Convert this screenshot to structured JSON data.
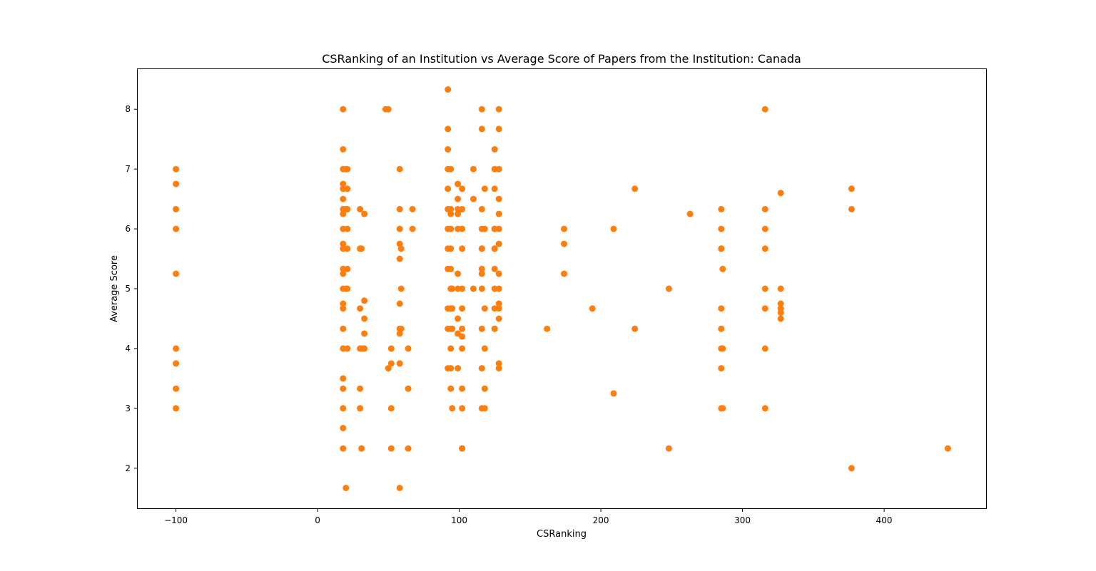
{
  "chart_data": {
    "type": "scatter",
    "title": "CSRanking of an Institution vs Average Score of Papers from the Institution: Canada",
    "xlabel": "CSRanking",
    "ylabel": "Average Score",
    "xlim": [
      -127,
      472
    ],
    "ylim": [
      1.33,
      8.67
    ],
    "xticks": [
      -100,
      0,
      100,
      200,
      300,
      400
    ],
    "xtick_labels": [
      "−100",
      "0",
      "100",
      "200",
      "300",
      "400"
    ],
    "yticks": [
      2,
      3,
      4,
      5,
      6,
      7,
      8
    ],
    "ytick_labels": [
      "2",
      "3",
      "4",
      "5",
      "6",
      "7",
      "8"
    ],
    "grid": false,
    "marker_color": "#ff7f0e",
    "x": [
      -100,
      -100,
      -100,
      -100,
      -100,
      -100,
      -100,
      -100,
      -100,
      18,
      18,
      18,
      18,
      18,
      18,
      18,
      18,
      18,
      18,
      18,
      18,
      18,
      18,
      18,
      18,
      18,
      18,
      18,
      18,
      18,
      18,
      18,
      20,
      20,
      20,
      20,
      21,
      21,
      21,
      21,
      21,
      21,
      21,
      21,
      30,
      30,
      30,
      30,
      30,
      30,
      31,
      31,
      31,
      33,
      33,
      33,
      33,
      33,
      48,
      50,
      50,
      52,
      52,
      52,
      52,
      58,
      58,
      58,
      58,
      58,
      58,
      58,
      58,
      58,
      58,
      59,
      59,
      59,
      64,
      64,
      64,
      67,
      67,
      92,
      92,
      92,
      92,
      92,
      92,
      92,
      92,
      92,
      92,
      92,
      92,
      94,
      94,
      94,
      94,
      94,
      94,
      94,
      94,
      94,
      94,
      94,
      94,
      95,
      95,
      95,
      95,
      99,
      99,
      99,
      99,
      99,
      99,
      99,
      99,
      99,
      99,
      102,
      102,
      102,
      102,
      102,
      102,
      102,
      102,
      102,
      102,
      102,
      102,
      102,
      110,
      110,
      110,
      116,
      116,
      116,
      116,
      116,
      116,
      116,
      116,
      116,
      116,
      116,
      116,
      118,
      118,
      118,
      118,
      118,
      118,
      125,
      125,
      125,
      125,
      125,
      125,
      125,
      125,
      125,
      125,
      125,
      125,
      128,
      128,
      128,
      128,
      128,
      128,
      128,
      128,
      128,
      128,
      128,
      128,
      128,
      128,
      162,
      174,
      174,
      174,
      194,
      209,
      209,
      224,
      224,
      248,
      248,
      263,
      285,
      285,
      285,
      285,
      285,
      285,
      285,
      285,
      285,
      286,
      286,
      286,
      316,
      316,
      316,
      316,
      316,
      316,
      316,
      316,
      327,
      327,
      327,
      327,
      327,
      327,
      377,
      377,
      377,
      445
    ],
    "y": [
      7,
      6.75,
      6.33,
      6,
      5.25,
      4,
      3.75,
      3.33,
      3,
      8,
      7.33,
      7,
      6.75,
      6.67,
      6.5,
      6.33,
      6.25,
      6,
      5.75,
      5.67,
      5.33,
      5.25,
      5,
      4.75,
      4.67,
      4.33,
      4,
      3.5,
      3.33,
      3,
      2.67,
      2.33,
      1.67,
      7,
      6.33,
      5,
      6.67,
      7,
      6.33,
      6,
      5.67,
      5.33,
      5,
      4,
      6.33,
      5.67,
      4.67,
      4,
      3.33,
      3,
      5.67,
      2.33,
      4,
      6.25,
      4.8,
      4.5,
      4.25,
      4,
      8,
      8,
      3.67,
      4,
      3.75,
      3,
      2.33,
      7,
      6.33,
      6,
      5.75,
      5.5,
      4.75,
      4.33,
      4.25,
      3.75,
      1.67,
      5.67,
      5,
      4.33,
      4,
      3.33,
      2.33,
      6.33,
      6,
      8.33,
      7.67,
      7.33,
      7,
      6.67,
      6.33,
      6,
      5.67,
      5.33,
      4.67,
      4.33,
      3.67,
      7,
      6.33,
      6.25,
      6,
      5.67,
      5.33,
      5,
      4.67,
      4.33,
      3.67,
      3.33,
      4,
      3,
      5,
      4.67,
      4.33,
      6.75,
      6.5,
      6.33,
      6.25,
      5.25,
      5,
      4.5,
      4.25,
      3.67,
      6,
      6.67,
      6.33,
      6,
      5.67,
      5,
      4.67,
      4.33,
      4.2,
      4,
      3.33,
      3,
      2.33,
      2.33,
      7,
      6.5,
      5,
      8,
      7.67,
      6.33,
      6,
      5.67,
      5.33,
      5.25,
      5,
      4.33,
      3.67,
      3,
      5.67,
      6.67,
      6,
      4.67,
      4,
      3.33,
      3,
      7.33,
      7,
      6.67,
      6,
      5.67,
      5.33,
      5,
      4.67,
      4.33,
      4.33,
      6,
      5.67,
      8,
      7.67,
      7,
      6.5,
      6.25,
      6,
      5.75,
      5.25,
      5,
      4.75,
      4.67,
      4.5,
      3.75,
      3.67,
      4.33,
      6,
      5.75,
      5.25,
      4.67,
      6,
      3.25,
      6.67,
      4.33,
      5,
      2.33,
      6.25,
      6.33,
      6,
      5.67,
      4.67,
      4.33,
      4,
      3.67,
      3,
      5.67,
      5.33,
      4,
      3,
      8,
      6.33,
      6,
      5.67,
      5,
      4.67,
      4,
      3,
      6.6,
      5,
      4.75,
      4.67,
      4.6,
      4.5,
      6.67,
      6.33,
      2,
      2.33
    ]
  }
}
